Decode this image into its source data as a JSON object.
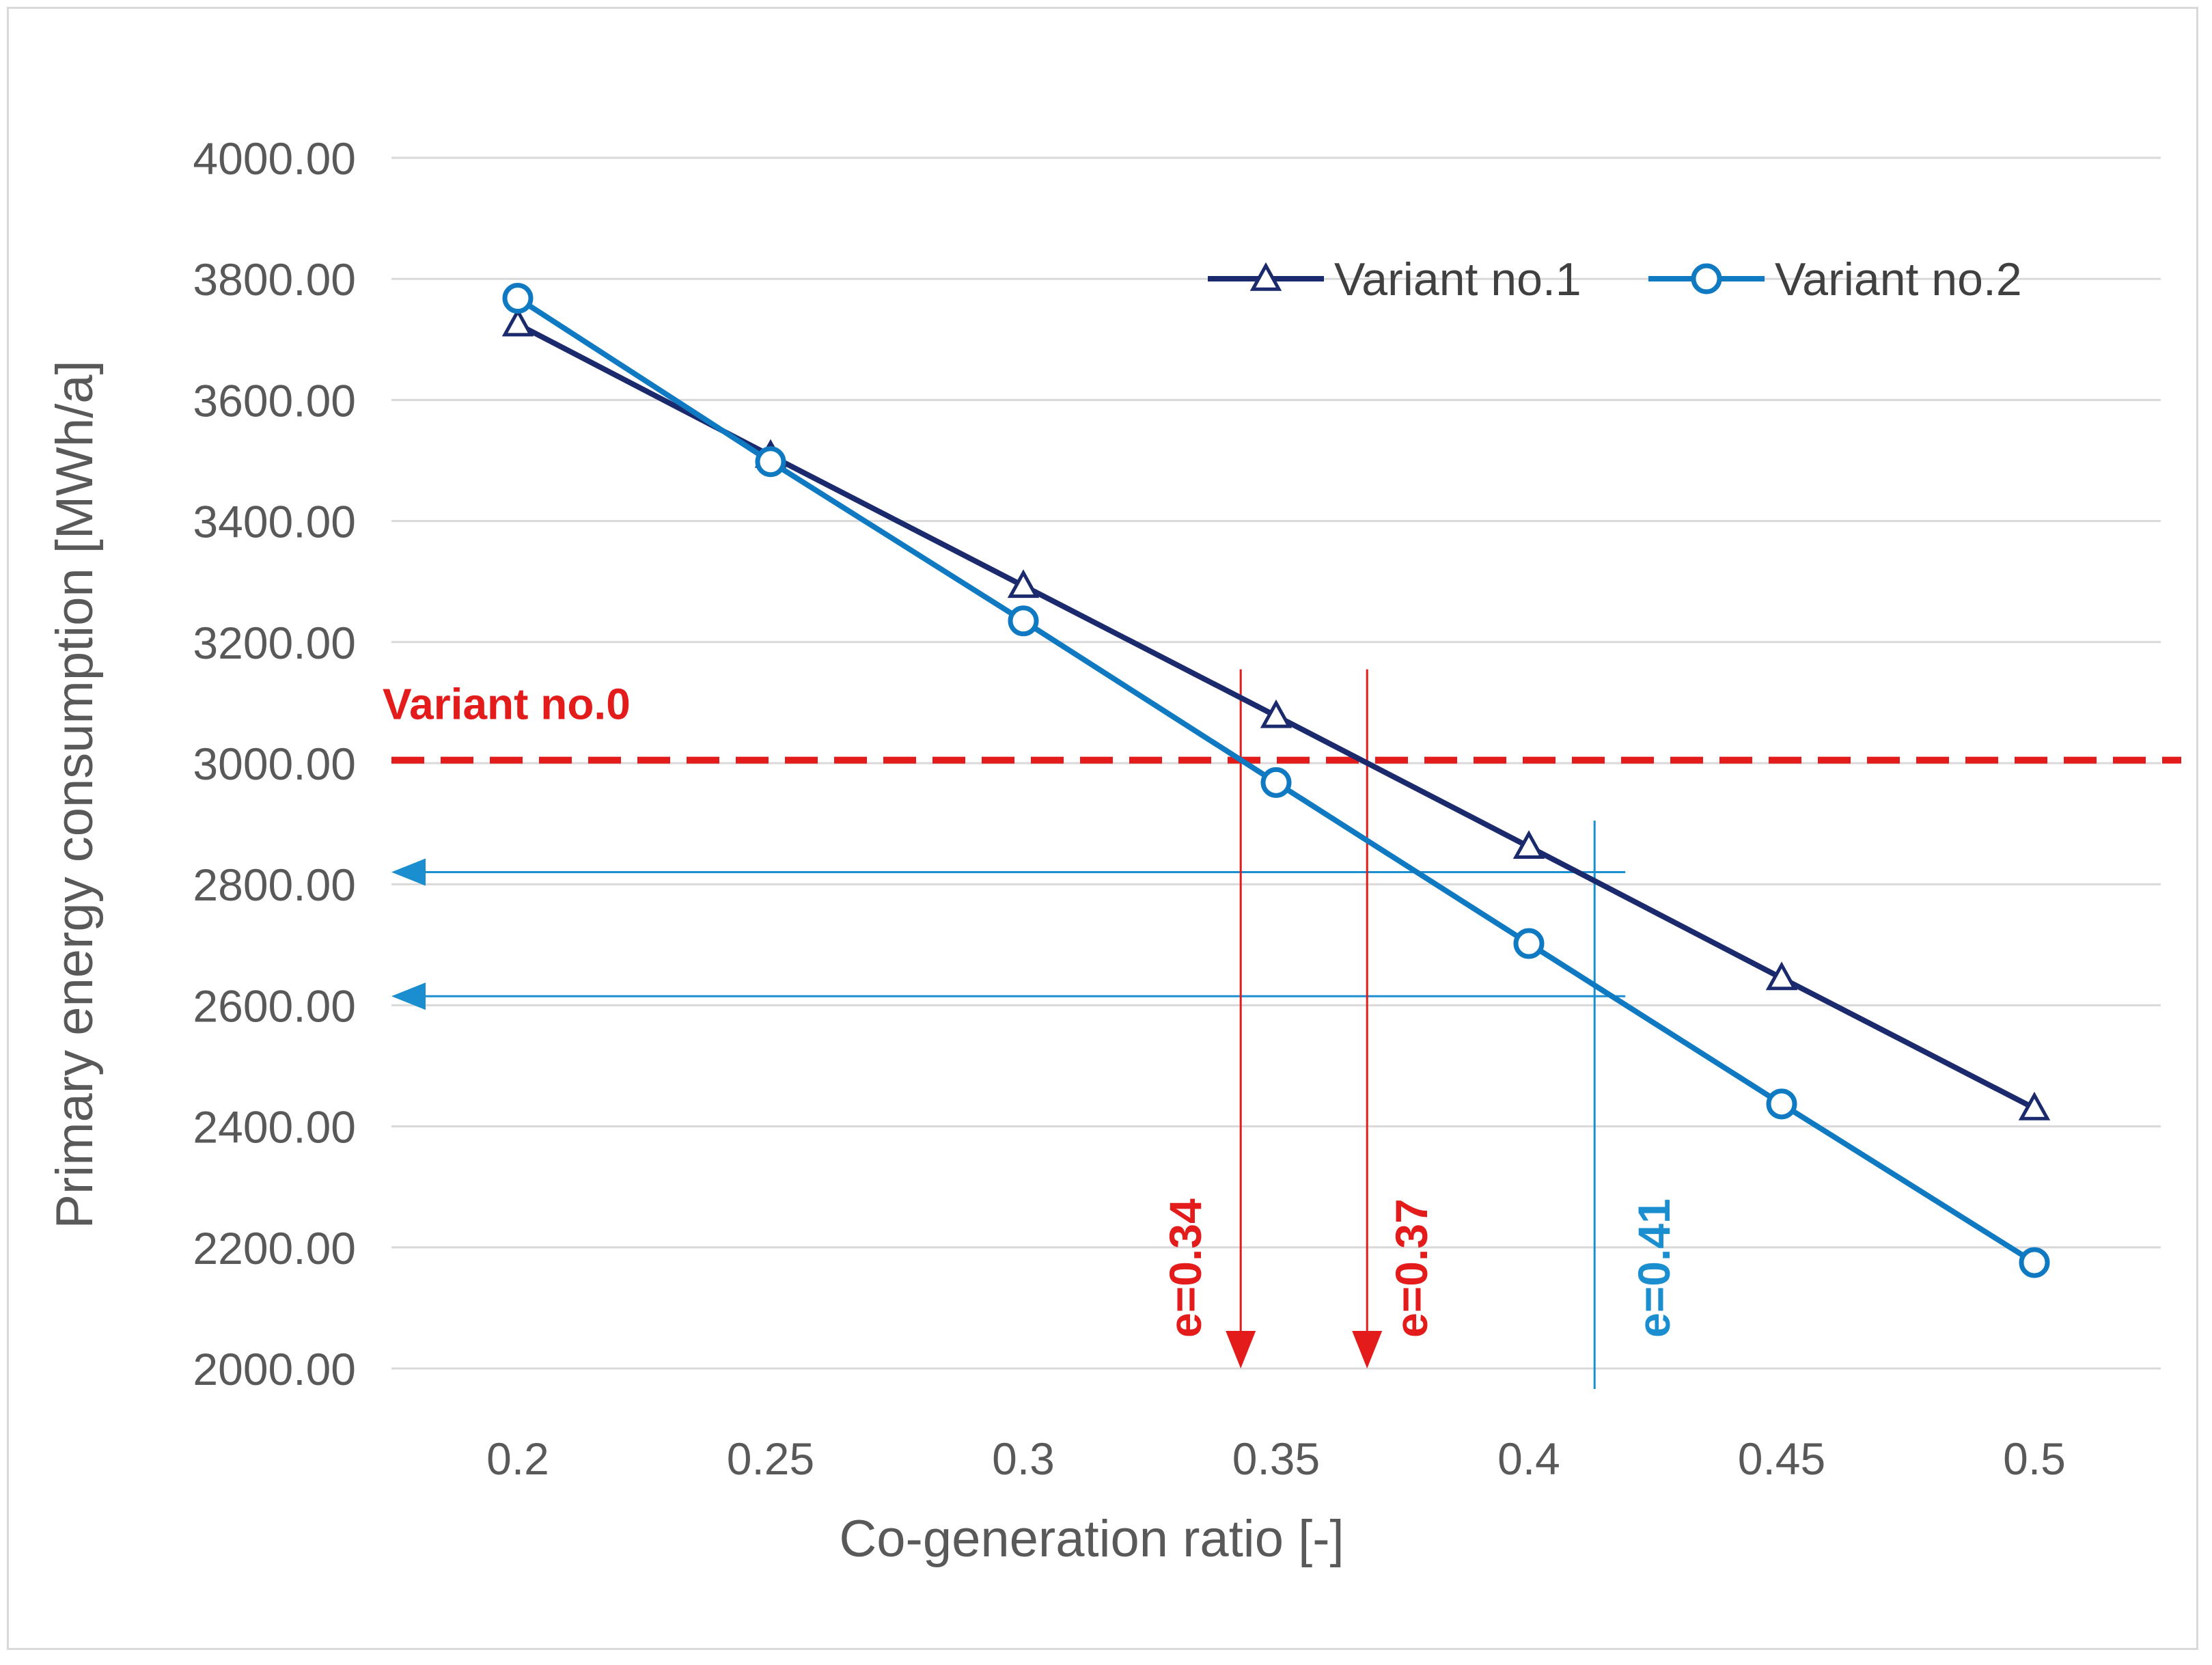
{
  "chart_data": {
    "type": "line",
    "title": "",
    "xlabel": "Co-generation ratio [-]",
    "ylabel": "Primary energy consumption [MWh/a]",
    "categories": [
      "0.2",
      "0.25",
      "0.3",
      "0.35",
      "0.4",
      "0.45",
      "0.5"
    ],
    "x": [
      0.2,
      0.25,
      0.3,
      0.35,
      0.4,
      0.45,
      0.5
    ],
    "xlim": [
      0.175,
      0.525
    ],
    "ylim": [
      2000,
      4000
    ],
    "yticks": [
      "2000.00",
      "2200.00",
      "2400.00",
      "2600.00",
      "2800.00",
      "3000.00",
      "3200.00",
      "3400.00",
      "3600.00",
      "3800.00",
      "4000.00"
    ],
    "ytick_values": [
      2000,
      2200,
      2400,
      2600,
      2800,
      3000,
      3200,
      3400,
      3600,
      3800,
      4000
    ],
    "grid": true,
    "legend_position": "top-right",
    "series": [
      {
        "name": "Variant no.1",
        "marker": "triangle",
        "color": "#1a2a6c",
        "values": [
          3725,
          3508,
          3293,
          3078,
          2862,
          2645,
          2430
        ]
      },
      {
        "name": "Variant no.2",
        "marker": "circle",
        "color": "#0f7ac2",
        "values": [
          3768,
          3498,
          3235,
          2968,
          2702,
          2437,
          2175
        ]
      }
    ],
    "reference_line": {
      "label": "Variant no.0",
      "value": 3005,
      "color": "#e31b1b"
    },
    "annotations": [
      {
        "label": "e=0.34",
        "x": 0.343,
        "color": "#e31b1b",
        "kind": "down-arrow"
      },
      {
        "label": "e=0.37",
        "x": 0.368,
        "color": "#e31b1b",
        "kind": "down-arrow"
      },
      {
        "label": "e=0.41",
        "x": 0.413,
        "color": "#1b8ed0",
        "kind": "vertical-line"
      }
    ],
    "horizontal_arrows": [
      {
        "value": 2820,
        "color": "#1b8ed0"
      },
      {
        "value": 2615,
        "color": "#1b8ed0"
      }
    ]
  }
}
